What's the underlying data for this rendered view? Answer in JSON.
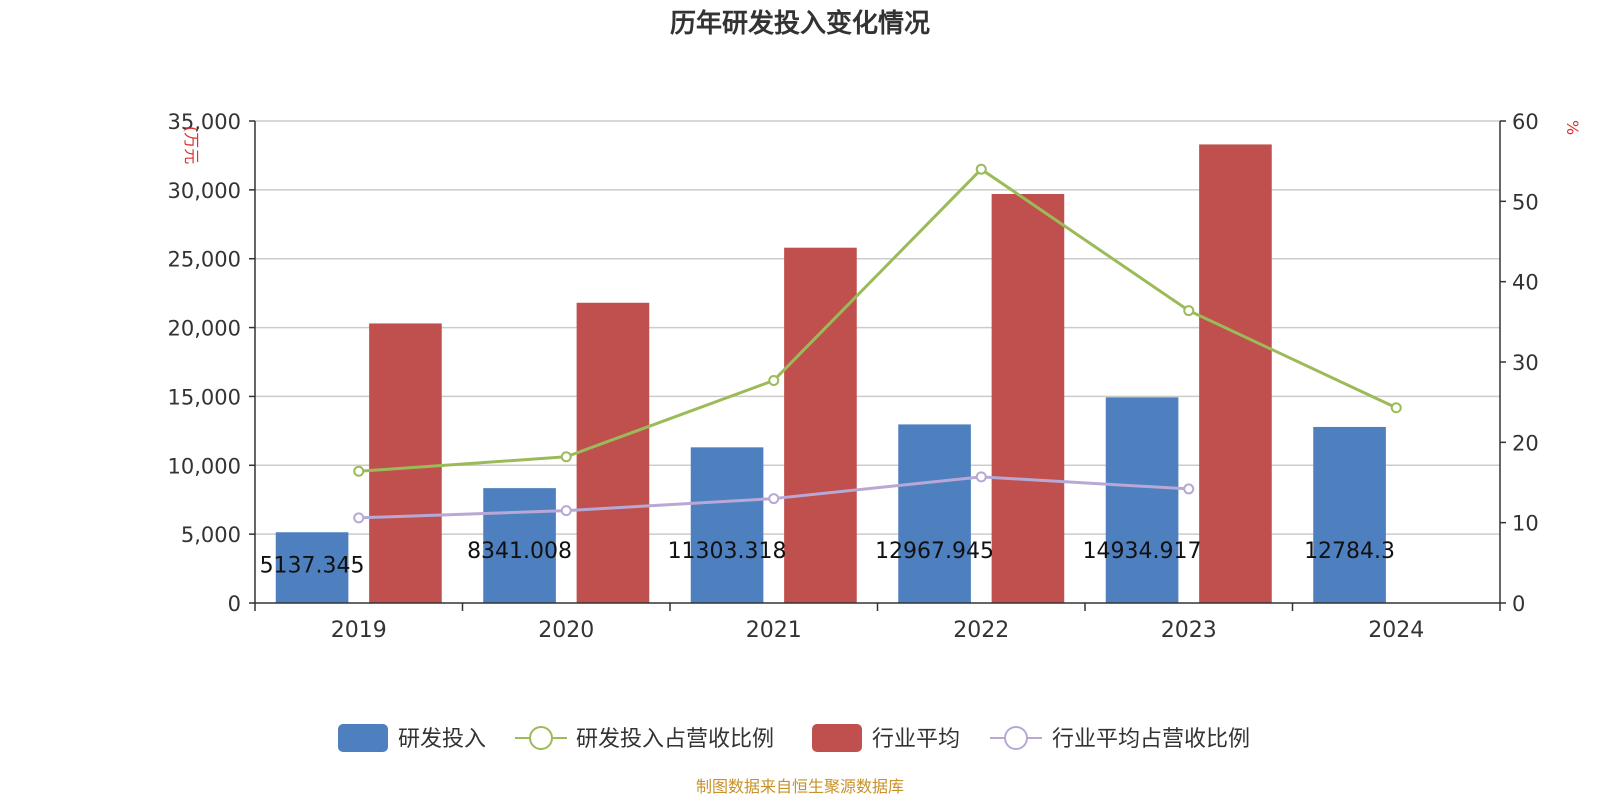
{
  "chart_data": {
    "type": "bar",
    "title": "历年研发投入变化情况",
    "ylabel_left": "(万元",
    "ylabel_right": "%",
    "categories": [
      "2019",
      "2020",
      "2021",
      "2022",
      "2023",
      "2024"
    ],
    "y_left": {
      "min": 0,
      "max": 35000,
      "ticks": [
        "0",
        "5,000",
        "10,000",
        "15,000",
        "20,000",
        "25,000",
        "30,000",
        "35,000"
      ]
    },
    "y_right": {
      "min": 0,
      "max": 60,
      "ticks": [
        "0",
        "10",
        "20",
        "30",
        "40",
        "50",
        "60"
      ]
    },
    "grid": true,
    "legend_position": "bottom",
    "series": [
      {
        "name": "研发投入",
        "type": "bar",
        "axis": "left",
        "color": "#4e7fbf",
        "values": [
          5137.345,
          8341.008,
          11303.318,
          12967.945,
          14934.917,
          12784.3
        ],
        "labels": [
          "5137.345",
          "8341.008",
          "11303.318",
          "12967.945",
          "14934.917",
          "12784.3"
        ]
      },
      {
        "name": "研发投入占营收比例",
        "type": "line",
        "axis": "right",
        "color": "#9bbb59",
        "values": [
          16.4,
          18.2,
          27.7,
          54.0,
          36.4,
          24.3
        ]
      },
      {
        "name": "行业平均",
        "type": "bar",
        "axis": "left",
        "color": "#c0504d",
        "values": [
          20300,
          21800,
          25800,
          29700,
          33300,
          null
        ]
      },
      {
        "name": "行业平均占营收比例",
        "type": "line",
        "axis": "right",
        "color": "#b7a8d6",
        "values": [
          10.6,
          11.5,
          13.0,
          15.7,
          14.2,
          null
        ]
      }
    ],
    "source": "制图数据来自恒生聚源数据库"
  }
}
